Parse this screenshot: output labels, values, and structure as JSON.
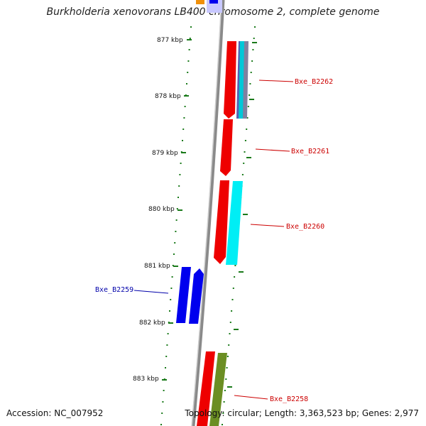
{
  "title": "Burkholderia xenovorans LB400 chromosome 2, complete genome",
  "footer": {
    "accession": "Accession: NC_007952",
    "summary": "Topology: circular; Length: 3,363,523 bp; Genes: 2,977"
  },
  "ticks": [
    {
      "label": "877 kbp"
    },
    {
      "label": "878 kbp"
    },
    {
      "label": "879 kbp"
    },
    {
      "label": "880 kbp"
    },
    {
      "label": "881 kbp"
    },
    {
      "label": "882 kbp"
    },
    {
      "label": "883 kbp"
    }
  ],
  "genes": [
    {
      "label": "Bxe_B2262",
      "color": "#cc0000"
    },
    {
      "label": "Bxe_B2261",
      "color": "#cc0000"
    },
    {
      "label": "Bxe_B2260",
      "color": "#cc0000"
    },
    {
      "label": "Bxe_B2259",
      "color": "#0000aa"
    },
    {
      "label": "Bxe_B2258",
      "color": "#cc0000"
    }
  ],
  "colors": {
    "backbone": "#8a8a8a",
    "scale": "#1a7a1a",
    "red": "#ee0000",
    "blue": "#0000ee",
    "cyan": "#00e8f0",
    "olive": "#6b8e23",
    "orange": "#f0900a"
  }
}
